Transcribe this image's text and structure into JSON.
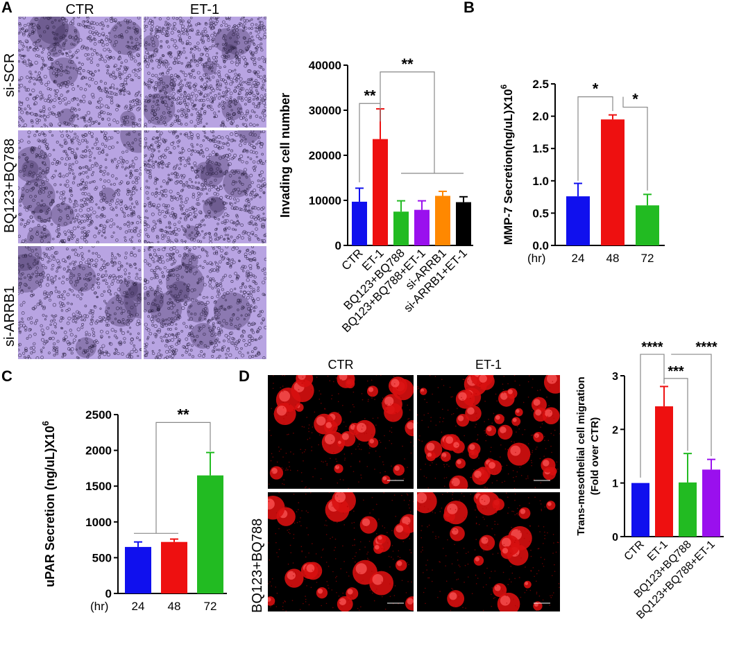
{
  "panels": {
    "A": {
      "letter": "A",
      "columns": [
        "CTR",
        "ET-1"
      ],
      "rows": [
        "si-SCR",
        "BQ123+BQ788",
        "si-ARRB1"
      ]
    },
    "B": {
      "letter": "B"
    },
    "C": {
      "letter": "C"
    },
    "D": {
      "letter": "D",
      "columns": [
        "CTR",
        "ET-1"
      ],
      "rows": [
        "BQ123+BQ788"
      ]
    }
  },
  "chart_data": [
    {
      "id": "invasion",
      "type": "bar",
      "ylabel": "Invading cell number",
      "xlabel": "",
      "categories": [
        "CTR",
        "ET-1",
        "BQ123+BQ788",
        "BQ123+BQ788+ET-1",
        "si-ARRB1",
        "si-ARRB1+ET-1"
      ],
      "values": [
        9700,
        23600,
        7500,
        7900,
        11000,
        9600
      ],
      "errors": [
        3000,
        6700,
        2400,
        2000,
        1000,
        1200
      ],
      "colors": [
        "#1010ee",
        "#ee1010",
        "#22bb22",
        "#9a10ee",
        "#ff8800",
        "#000000"
      ],
      "ylim": [
        0,
        40000
      ],
      "yticks": [
        "0",
        "10000",
        "20000",
        "30000",
        "40000"
      ],
      "significance": [
        "**",
        "**"
      ]
    },
    {
      "id": "mmp7",
      "type": "bar",
      "ylabel": "MMP-7 Secretion(ng/uL)X10",
      "ylabel_sup": "6",
      "xunit": "(hr)",
      "categories": [
        "24",
        "48",
        "72"
      ],
      "values": [
        0.76,
        1.95,
        0.62
      ],
      "errors": [
        0.2,
        0.07,
        0.17
      ],
      "colors": [
        "#1010ee",
        "#ee1010",
        "#22bb22"
      ],
      "ylim": [
        0,
        2.5
      ],
      "yticks": [
        "0.0",
        "0.5",
        "1.0",
        "1.5",
        "2.0",
        "2.5"
      ],
      "significance": [
        "*",
        "*"
      ]
    },
    {
      "id": "upar",
      "type": "bar",
      "ylabel": "uPAR Secretion (ng/uL)X10",
      "ylabel_sup": "6",
      "xunit": "(hr)",
      "categories": [
        "24",
        "48",
        "72"
      ],
      "values": [
        650,
        720,
        1650
      ],
      "errors": [
        70,
        40,
        320
      ],
      "colors": [
        "#1010ee",
        "#ee1010",
        "#22bb22"
      ],
      "ylim": [
        0,
        2500
      ],
      "yticks": [
        "0",
        "500",
        "1000",
        "1500",
        "2000",
        "2500"
      ],
      "significance": [
        "**"
      ]
    },
    {
      "id": "migration",
      "type": "bar",
      "ylabel": "Trans-mesothelial cell migration",
      "ylabel2": "(Fold over CTR)",
      "categories": [
        "CTR",
        "ET-1",
        "BQ123+BQ788",
        "BQ123+BQ788+ET-1"
      ],
      "values": [
        1.0,
        2.43,
        1.01,
        1.25
      ],
      "errors": [
        0,
        0.37,
        0.54,
        0.19
      ],
      "colors": [
        "#1010ee",
        "#ee1010",
        "#22bb22",
        "#9a10ee"
      ],
      "ylim": [
        0,
        3
      ],
      "yticks": [
        "0",
        "1",
        "2",
        "3"
      ],
      "significance": [
        "****",
        "***",
        "****"
      ]
    }
  ]
}
